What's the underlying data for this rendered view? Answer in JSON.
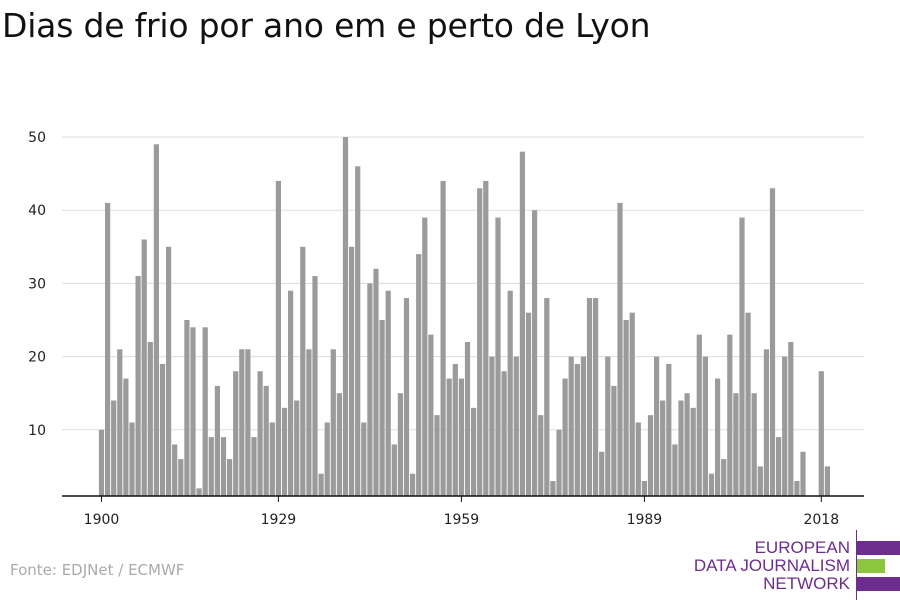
{
  "title": "Dias de frio por ano em e perto de Lyon",
  "source": "Fonte: EDJNet / ECMWF",
  "logo": {
    "line1": "EUROPEAN",
    "line2": "DATA JOURNALISM",
    "line3": "NETWORK",
    "colors": {
      "purple": "#6d2c8e",
      "green": "#8cc63f"
    }
  },
  "colors": {
    "bar": "#9b9b9b",
    "grid": "#dddddd",
    "axis": "#111111",
    "text": "#222222",
    "title": "#111111",
    "source": "#aaaaaa"
  },
  "chart_data": {
    "type": "bar",
    "title": "Dias de frio por ano em e perto de Lyon",
    "xlabel": "",
    "ylabel": "",
    "x_start": 1900,
    "x_end": 2021,
    "x_ticks": [
      1900,
      1929,
      1959,
      1989,
      2018
    ],
    "y_ticks": [
      10,
      20,
      30,
      40,
      50
    ],
    "ylim": [
      0,
      50
    ],
    "grid": true,
    "categories": [
      1900,
      1901,
      1902,
      1903,
      1904,
      1905,
      1906,
      1907,
      1908,
      1909,
      1910,
      1911,
      1912,
      1913,
      1914,
      1915,
      1916,
      1917,
      1918,
      1919,
      1920,
      1921,
      1922,
      1923,
      1924,
      1925,
      1926,
      1927,
      1928,
      1929,
      1930,
      1931,
      1932,
      1933,
      1934,
      1935,
      1936,
      1937,
      1938,
      1939,
      1940,
      1941,
      1942,
      1943,
      1944,
      1945,
      1946,
      1947,
      1948,
      1949,
      1950,
      1951,
      1952,
      1953,
      1954,
      1955,
      1956,
      1957,
      1958,
      1959,
      1960,
      1961,
      1962,
      1963,
      1964,
      1965,
      1966,
      1967,
      1968,
      1969,
      1970,
      1971,
      1972,
      1973,
      1974,
      1975,
      1976,
      1977,
      1978,
      1979,
      1980,
      1981,
      1982,
      1983,
      1984,
      1985,
      1986,
      1987,
      1988,
      1989,
      1990,
      1991,
      1992,
      1993,
      1994,
      1995,
      1996,
      1997,
      1998,
      1999,
      2000,
      2001,
      2002,
      2003,
      2004,
      2005,
      2006,
      2007,
      2008,
      2009,
      2010,
      2011,
      2012,
      2013,
      2014,
      2015,
      2016,
      2017,
      2018,
      2019
    ],
    "values": [
      10,
      41,
      14,
      21,
      17,
      11,
      31,
      36,
      22,
      49,
      19,
      35,
      8,
      6,
      25,
      24,
      2,
      24,
      9,
      16,
      9,
      6,
      18,
      21,
      21,
      9,
      18,
      16,
      11,
      44,
      13,
      29,
      14,
      35,
      21,
      31,
      4,
      11,
      21,
      15,
      50,
      35,
      46,
      11,
      30,
      32,
      25,
      29,
      8,
      15,
      28,
      4,
      34,
      39,
      23,
      12,
      44,
      17,
      19,
      17,
      22,
      13,
      43,
      44,
      20,
      39,
      18,
      29,
      20,
      48,
      26,
      40,
      12,
      28,
      3,
      10,
      17,
      20,
      19,
      20,
      28,
      28,
      7,
      20,
      16,
      41,
      25,
      26,
      11,
      3,
      12,
      20,
      14,
      19,
      8,
      14,
      15,
      13,
      23,
      20,
      4,
      17,
      6,
      23,
      15,
      39,
      26,
      15,
      5,
      21,
      43,
      9,
      20,
      22,
      3,
      7,
      0,
      0,
      18,
      5
    ]
  }
}
